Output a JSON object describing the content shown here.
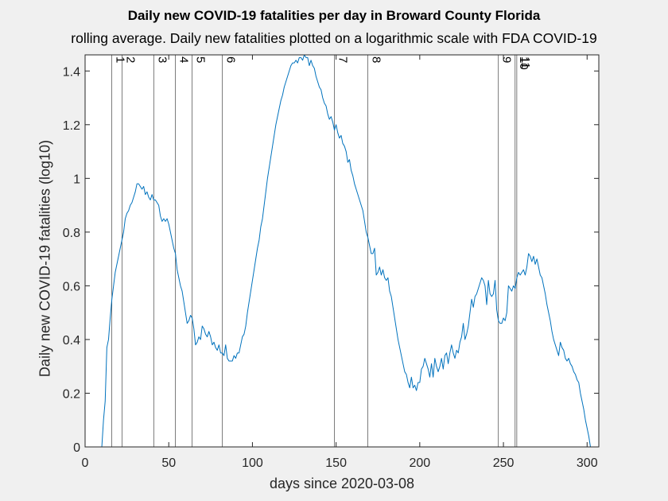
{
  "chart_data": {
    "type": "line",
    "title": "Daily new COVID-19 fatalities per day in Broward County Florida",
    "subtitle": "rolling average. Daily new fatalities plotted on a logarithmic scale with FDA COVID-19",
    "xlabel": "days since 2020-03-08",
    "ylabel": "Daily new COVID-19 fatalities (log10)",
    "xlim": [
      0,
      307
    ],
    "ylim": [
      0,
      1.46
    ],
    "xticks": [
      0,
      50,
      100,
      150,
      200,
      250,
      300
    ],
    "yticks": [
      0,
      0.2,
      0.4,
      0.6,
      0.8,
      1,
      1.2,
      1.4
    ],
    "ytick_labels": [
      "0",
      "0.2",
      "0.4",
      "0.6",
      "0.8",
      "1",
      "1.2",
      "1.4"
    ],
    "grid": false,
    "line_color": "#0072bd",
    "event_markers": [
      {
        "label": "1",
        "x": 16
      },
      {
        "label": "2",
        "x": 22
      },
      {
        "label": "3",
        "x": 41
      },
      {
        "label": "4",
        "x": 54
      },
      {
        "label": "5",
        "x": 64
      },
      {
        "label": "6",
        "x": 82
      },
      {
        "label": "7",
        "x": 149
      },
      {
        "label": "8",
        "x": 169
      },
      {
        "label": "9",
        "x": 247
      },
      {
        "label": "10",
        "x": 257
      },
      {
        "label": "11",
        "x": 258
      }
    ],
    "series": [
      {
        "points": [
          [
            10,
            0
          ],
          [
            11,
            0.1
          ],
          [
            12,
            0.17
          ],
          [
            13,
            0.37
          ],
          [
            14,
            0.4
          ],
          [
            15,
            0.48
          ],
          [
            16,
            0.55
          ],
          [
            17,
            0.6
          ],
          [
            18,
            0.65
          ],
          [
            19,
            0.68
          ],
          [
            20,
            0.71
          ],
          [
            21,
            0.74
          ],
          [
            22,
            0.77
          ],
          [
            23,
            0.8
          ],
          [
            24,
            0.85
          ],
          [
            25,
            0.87
          ],
          [
            26,
            0.88
          ],
          [
            27,
            0.9
          ],
          [
            28,
            0.91
          ],
          [
            29,
            0.93
          ],
          [
            30,
            0.95
          ],
          [
            31,
            0.98
          ],
          [
            32,
            0.98
          ],
          [
            33,
            0.97
          ],
          [
            34,
            0.96
          ],
          [
            35,
            0.97
          ],
          [
            36,
            0.94
          ],
          [
            37,
            0.95
          ],
          [
            38,
            0.93
          ],
          [
            39,
            0.92
          ],
          [
            40,
            0.94
          ],
          [
            41,
            0.92
          ],
          [
            42,
            0.92
          ],
          [
            43,
            0.91
          ],
          [
            44,
            0.9
          ],
          [
            45,
            0.86
          ],
          [
            46,
            0.84
          ],
          [
            47,
            0.85
          ],
          [
            48,
            0.84
          ],
          [
            49,
            0.85
          ],
          [
            50,
            0.83
          ],
          [
            51,
            0.8
          ],
          [
            52,
            0.77
          ],
          [
            53,
            0.74
          ],
          [
            54,
            0.72
          ],
          [
            55,
            0.66
          ],
          [
            56,
            0.63
          ],
          [
            57,
            0.6
          ],
          [
            58,
            0.58
          ],
          [
            59,
            0.54
          ],
          [
            60,
            0.5
          ],
          [
            61,
            0.46
          ],
          [
            62,
            0.47
          ],
          [
            63,
            0.49
          ],
          [
            64,
            0.48
          ],
          [
            65,
            0.44
          ],
          [
            66,
            0.38
          ],
          [
            67,
            0.39
          ],
          [
            68,
            0.41
          ],
          [
            69,
            0.4
          ],
          [
            70,
            0.45
          ],
          [
            71,
            0.44
          ],
          [
            72,
            0.42
          ],
          [
            73,
            0.41
          ],
          [
            74,
            0.43
          ],
          [
            75,
            0.41
          ],
          [
            76,
            0.38
          ],
          [
            77,
            0.39
          ],
          [
            78,
            0.37
          ],
          [
            79,
            0.36
          ],
          [
            80,
            0.38
          ],
          [
            81,
            0.35
          ],
          [
            82,
            0.35
          ],
          [
            83,
            0.34
          ],
          [
            84,
            0.38
          ],
          [
            85,
            0.33
          ],
          [
            86,
            0.32
          ],
          [
            87,
            0.32
          ],
          [
            88,
            0.32
          ],
          [
            89,
            0.34
          ],
          [
            90,
            0.33
          ],
          [
            91,
            0.35
          ],
          [
            92,
            0.35
          ],
          [
            93,
            0.38
          ],
          [
            94,
            0.41
          ],
          [
            95,
            0.42
          ],
          [
            96,
            0.45
          ],
          [
            97,
            0.5
          ],
          [
            98,
            0.54
          ],
          [
            99,
            0.58
          ],
          [
            100,
            0.62
          ],
          [
            101,
            0.66
          ],
          [
            102,
            0.7
          ],
          [
            103,
            0.74
          ],
          [
            104,
            0.77
          ],
          [
            105,
            0.82
          ],
          [
            106,
            0.85
          ],
          [
            107,
            0.9
          ],
          [
            108,
            0.95
          ],
          [
            109,
            1.0
          ],
          [
            110,
            1.04
          ],
          [
            111,
            1.08
          ],
          [
            112,
            1.12
          ],
          [
            113,
            1.16
          ],
          [
            114,
            1.2
          ],
          [
            115,
            1.23
          ],
          [
            116,
            1.26
          ],
          [
            117,
            1.29
          ],
          [
            118,
            1.31
          ],
          [
            119,
            1.34
          ],
          [
            120,
            1.36
          ],
          [
            121,
            1.38
          ],
          [
            122,
            1.4
          ],
          [
            123,
            1.42
          ],
          [
            124,
            1.43
          ],
          [
            125,
            1.43
          ],
          [
            126,
            1.44
          ],
          [
            127,
            1.43
          ],
          [
            128,
            1.45
          ],
          [
            129,
            1.45
          ],
          [
            130,
            1.44
          ],
          [
            131,
            1.46
          ],
          [
            132,
            1.45
          ],
          [
            133,
            1.45
          ],
          [
            134,
            1.42
          ],
          [
            135,
            1.44
          ],
          [
            136,
            1.42
          ],
          [
            137,
            1.41
          ],
          [
            138,
            1.38
          ],
          [
            139,
            1.36
          ],
          [
            140,
            1.34
          ],
          [
            141,
            1.33
          ],
          [
            142,
            1.3
          ],
          [
            143,
            1.28
          ],
          [
            144,
            1.27
          ],
          [
            145,
            1.24
          ],
          [
            146,
            1.22
          ],
          [
            147,
            1.23
          ],
          [
            148,
            1.21
          ],
          [
            149,
            1.18
          ],
          [
            150,
            1.2
          ],
          [
            151,
            1.17
          ],
          [
            152,
            1.15
          ],
          [
            153,
            1.16
          ],
          [
            154,
            1.13
          ],
          [
            155,
            1.12
          ],
          [
            156,
            1.1
          ],
          [
            157,
            1.06
          ],
          [
            158,
            1.07
          ],
          [
            159,
            1.03
          ],
          [
            160,
            1.01
          ],
          [
            161,
            0.98
          ],
          [
            162,
            0.96
          ],
          [
            163,
            0.94
          ],
          [
            164,
            0.92
          ],
          [
            165,
            0.9
          ],
          [
            166,
            0.88
          ],
          [
            167,
            0.84
          ],
          [
            168,
            0.8
          ],
          [
            169,
            0.78
          ],
          [
            170,
            0.75
          ],
          [
            171,
            0.72
          ],
          [
            172,
            0.72
          ],
          [
            173,
            0.74
          ],
          [
            174,
            0.64
          ],
          [
            175,
            0.65
          ],
          [
            176,
            0.67
          ],
          [
            177,
            0.64
          ],
          [
            178,
            0.66
          ],
          [
            179,
            0.63
          ],
          [
            180,
            0.62
          ],
          [
            181,
            0.63
          ],
          [
            182,
            0.58
          ],
          [
            183,
            0.56
          ],
          [
            184,
            0.52
          ],
          [
            185,
            0.48
          ],
          [
            186,
            0.44
          ],
          [
            187,
            0.4
          ],
          [
            188,
            0.37
          ],
          [
            189,
            0.34
          ],
          [
            190,
            0.31
          ],
          [
            191,
            0.28
          ],
          [
            192,
            0.27
          ],
          [
            193,
            0.24
          ],
          [
            194,
            0.22
          ],
          [
            195,
            0.26
          ],
          [
            196,
            0.22
          ],
          [
            197,
            0.23
          ],
          [
            198,
            0.21
          ],
          [
            199,
            0.24
          ],
          [
            200,
            0.24
          ],
          [
            201,
            0.29
          ],
          [
            202,
            0.3
          ],
          [
            203,
            0.33
          ],
          [
            204,
            0.31
          ],
          [
            205,
            0.29
          ],
          [
            206,
            0.26
          ],
          [
            207,
            0.31
          ],
          [
            208,
            0.26
          ],
          [
            209,
            0.33
          ],
          [
            210,
            0.3
          ],
          [
            211,
            0.28
          ],
          [
            212,
            0.3
          ],
          [
            213,
            0.33
          ],
          [
            214,
            0.29
          ],
          [
            215,
            0.34
          ],
          [
            216,
            0.35
          ],
          [
            217,
            0.31
          ],
          [
            218,
            0.35
          ],
          [
            219,
            0.38
          ],
          [
            220,
            0.35
          ],
          [
            221,
            0.33
          ],
          [
            222,
            0.36
          ],
          [
            223,
            0.35
          ],
          [
            224,
            0.39
          ],
          [
            225,
            0.41
          ],
          [
            226,
            0.46
          ],
          [
            227,
            0.4
          ],
          [
            228,
            0.42
          ],
          [
            229,
            0.45
          ],
          [
            230,
            0.5
          ],
          [
            231,
            0.55
          ],
          [
            232,
            0.52
          ],
          [
            233,
            0.56
          ],
          [
            234,
            0.57
          ],
          [
            235,
            0.59
          ],
          [
            236,
            0.61
          ],
          [
            237,
            0.63
          ],
          [
            238,
            0.62
          ],
          [
            239,
            0.6
          ],
          [
            240,
            0.53
          ],
          [
            241,
            0.62
          ],
          [
            242,
            0.57
          ],
          [
            243,
            0.56
          ],
          [
            244,
            0.57
          ],
          [
            245,
            0.62
          ],
          [
            246,
            0.51
          ],
          [
            247,
            0.47
          ],
          [
            248,
            0.46
          ],
          [
            249,
            0.46
          ],
          [
            250,
            0.48
          ],
          [
            251,
            0.47
          ],
          [
            252,
            0.5
          ],
          [
            253,
            0.6
          ],
          [
            254,
            0.59
          ],
          [
            255,
            0.58
          ],
          [
            256,
            0.6
          ],
          [
            257,
            0.59
          ],
          [
            258,
            0.63
          ],
          [
            259,
            0.65
          ],
          [
            260,
            0.64
          ],
          [
            261,
            0.65
          ],
          [
            262,
            0.66
          ],
          [
            263,
            0.64
          ],
          [
            264,
            0.67
          ],
          [
            265,
            0.72
          ],
          [
            266,
            0.71
          ],
          [
            267,
            0.69
          ],
          [
            268,
            0.71
          ],
          [
            269,
            0.68
          ],
          [
            270,
            0.7
          ],
          [
            271,
            0.67
          ],
          [
            272,
            0.64
          ],
          [
            273,
            0.63
          ],
          [
            274,
            0.6
          ],
          [
            275,
            0.57
          ],
          [
            276,
            0.53
          ],
          [
            277,
            0.5
          ],
          [
            278,
            0.47
          ],
          [
            279,
            0.43
          ],
          [
            280,
            0.4
          ],
          [
            281,
            0.38
          ],
          [
            282,
            0.36
          ],
          [
            283,
            0.34
          ],
          [
            284,
            0.39
          ],
          [
            285,
            0.37
          ],
          [
            286,
            0.36
          ],
          [
            287,
            0.33
          ],
          [
            288,
            0.32
          ],
          [
            289,
            0.33
          ],
          [
            290,
            0.31
          ],
          [
            291,
            0.3
          ],
          [
            292,
            0.28
          ],
          [
            293,
            0.27
          ],
          [
            294,
            0.25
          ],
          [
            295,
            0.24
          ],
          [
            296,
            0.2
          ],
          [
            297,
            0.17
          ],
          [
            298,
            0.14
          ],
          [
            299,
            0.1
          ],
          [
            300,
            0.07
          ],
          [
            301,
            0.04
          ],
          [
            302,
            0
          ]
        ]
      }
    ]
  }
}
